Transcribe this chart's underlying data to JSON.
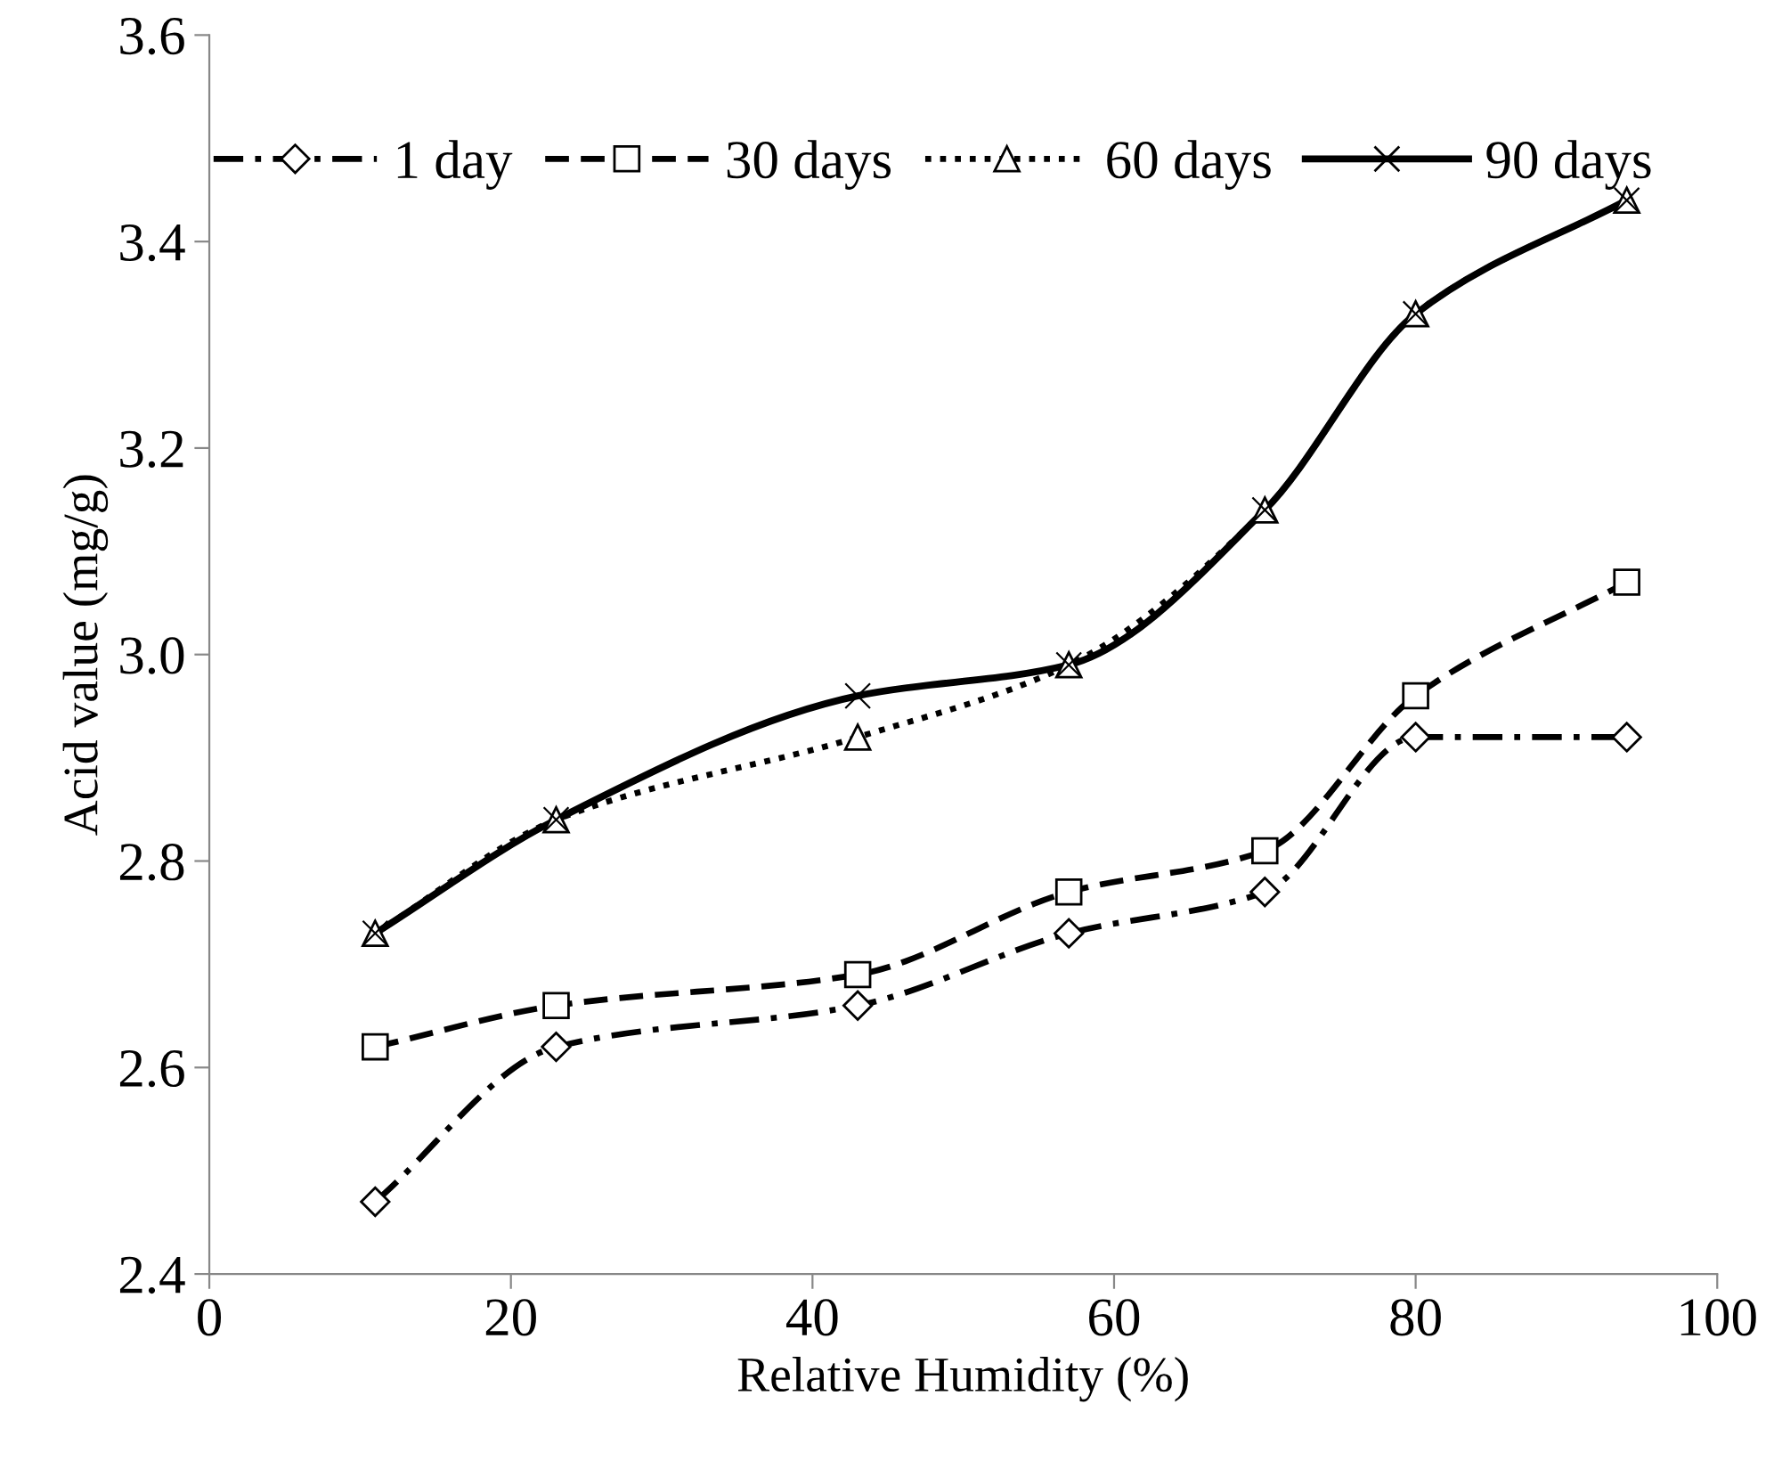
{
  "chart_data": {
    "type": "line",
    "xlabel": "Relative Humidity (%)",
    "ylabel": "Acid value (mg/g)",
    "x": [
      11,
      23,
      43,
      57,
      70,
      80,
      94
    ],
    "xlim": [
      0,
      100
    ],
    "xticks": [
      0,
      20,
      40,
      60,
      80,
      100
    ],
    "ylim": [
      2.4,
      3.6
    ],
    "yticks": [
      {
        "value": 2.4,
        "label": "2.4"
      },
      {
        "value": 2.6,
        "label": "2.6"
      },
      {
        "value": 2.8,
        "label": "2.8"
      },
      {
        "value": 3.0,
        "label": "3.0"
      },
      {
        "value": 3.2,
        "label": "3.2"
      },
      {
        "value": 3.4,
        "label": "3.4"
      },
      {
        "value": 3.6,
        "label": "3.6"
      }
    ],
    "grid": false,
    "legend": "top",
    "series": [
      {
        "name": "1 day",
        "color": "#000000",
        "marker": "diamond",
        "line_style": "dashdot",
        "values": [
          2.47,
          2.62,
          2.66,
          2.73,
          2.77,
          2.92,
          2.92
        ]
      },
      {
        "name": "30 days",
        "color": "#000000",
        "marker": "square",
        "line_style": "dashed",
        "values": [
          2.62,
          2.66,
          2.69,
          2.77,
          2.81,
          2.96,
          3.07
        ]
      },
      {
        "name": "60 days",
        "color": "#000000",
        "marker": "triangle",
        "line_style": "dotted",
        "values": [
          2.73,
          2.84,
          2.92,
          2.99,
          3.14,
          3.33,
          3.44
        ]
      },
      {
        "name": "90 days",
        "color": "#000000",
        "marker": "cross",
        "line_style": "solid",
        "values": [
          2.73,
          2.84,
          2.96,
          2.99,
          3.14,
          3.33,
          3.44
        ]
      }
    ]
  }
}
